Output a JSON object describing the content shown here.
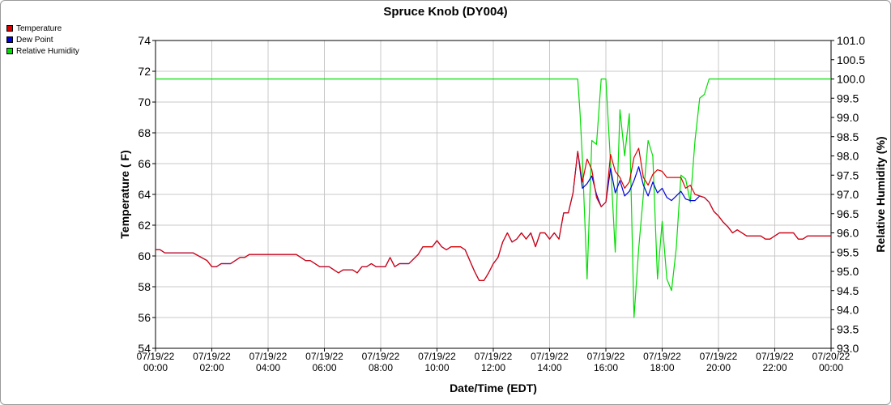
{
  "chart_data": {
    "type": "line",
    "title": "Spruce Knob (DY004)",
    "xlabel": "Date/Time (EDT)",
    "ylabel": "Temperature ( F)",
    "y2label": "Relative Humidity (%)",
    "ylim": [
      54,
      74
    ],
    "y2lim": [
      93.0,
      101.0
    ],
    "grid": true,
    "legend_position": "top-left",
    "x_ticks": [
      {
        "date": "07/19/22",
        "time": "00:00"
      },
      {
        "date": "07/19/22",
        "time": "02:00"
      },
      {
        "date": "07/19/22",
        "time": "04:00"
      },
      {
        "date": "07/19/22",
        "time": "06:00"
      },
      {
        "date": "07/19/22",
        "time": "08:00"
      },
      {
        "date": "07/19/22",
        "time": "10:00"
      },
      {
        "date": "07/19/22",
        "time": "12:00"
      },
      {
        "date": "07/19/22",
        "time": "14:00"
      },
      {
        "date": "07/19/22",
        "time": "16:00"
      },
      {
        "date": "07/19/22",
        "time": "18:00"
      },
      {
        "date": "07/19/22",
        "time": "20:00"
      },
      {
        "date": "07/19/22",
        "time": "22:00"
      },
      {
        "date": "07/20/22",
        "time": "00:00"
      }
    ],
    "y_ticks": [
      "54",
      "56",
      "58",
      "60",
      "62",
      "64",
      "66",
      "68",
      "70",
      "72",
      "74"
    ],
    "y2_ticks": [
      "93.0",
      "93.5",
      "94.0",
      "94.5",
      "95.0",
      "95.5",
      "96.0",
      "96.5",
      "97.0",
      "97.5",
      "98.0",
      "98.5",
      "99.0",
      "99.5",
      "100.0",
      "100.5",
      "101.0"
    ],
    "series": [
      {
        "name": "Temperature",
        "color": "#dd0000",
        "axis": "left",
        "points": [
          [
            "07/19/22 00:00",
            60.4
          ],
          [
            "07/19/22 00:10",
            60.4
          ],
          [
            "07/19/22 00:20",
            60.2
          ],
          [
            "07/19/22 01:20",
            60.2
          ],
          [
            "07/19/22 01:50",
            59.7
          ],
          [
            "07/19/22 02:00",
            59.3
          ],
          [
            "07/19/22 02:10",
            59.3
          ],
          [
            "07/19/22 02:20",
            59.5
          ],
          [
            "07/19/22 02:40",
            59.5
          ],
          [
            "07/19/22 03:00",
            59.9
          ],
          [
            "07/19/22 03:10",
            59.9
          ],
          [
            "07/19/22 03:20",
            60.1
          ],
          [
            "07/19/22 05:00",
            60.1
          ],
          [
            "07/19/22 05:20",
            59.7
          ],
          [
            "07/19/22 05:30",
            59.7
          ],
          [
            "07/19/22 05:50",
            59.3
          ],
          [
            "07/19/22 06:10",
            59.3
          ],
          [
            "07/19/22 06:30",
            58.9
          ],
          [
            "07/19/22 06:40",
            59.1
          ],
          [
            "07/19/22 07:00",
            59.1
          ],
          [
            "07/19/22 07:10",
            58.9
          ],
          [
            "07/19/22 07:20",
            59.3
          ],
          [
            "07/19/22 07:30",
            59.3
          ],
          [
            "07/19/22 07:40",
            59.5
          ],
          [
            "07/19/22 07:50",
            59.3
          ],
          [
            "07/19/22 08:10",
            59.3
          ],
          [
            "07/19/22 08:20",
            59.9
          ],
          [
            "07/19/22 08:30",
            59.3
          ],
          [
            "07/19/22 08:40",
            59.5
          ],
          [
            "07/19/22 09:00",
            59.5
          ],
          [
            "07/19/22 09:20",
            60.1
          ],
          [
            "07/19/22 09:30",
            60.6
          ],
          [
            "07/19/22 09:50",
            60.6
          ],
          [
            "07/19/22 10:00",
            61.0
          ],
          [
            "07/19/22 10:10",
            60.6
          ],
          [
            "07/19/22 10:20",
            60.4
          ],
          [
            "07/19/22 10:30",
            60.6
          ],
          [
            "07/19/22 10:50",
            60.6
          ],
          [
            "07/19/22 11:00",
            60.4
          ],
          [
            "07/19/22 11:10",
            59.7
          ],
          [
            "07/19/22 11:20",
            59.0
          ],
          [
            "07/19/22 11:30",
            58.4
          ],
          [
            "07/19/22 11:40",
            58.4
          ],
          [
            "07/19/22 11:50",
            58.9
          ],
          [
            "07/19/22 12:00",
            59.5
          ],
          [
            "07/19/22 12:10",
            59.9
          ],
          [
            "07/19/22 12:20",
            60.9
          ],
          [
            "07/19/22 12:30",
            61.5
          ],
          [
            "07/19/22 12:40",
            60.9
          ],
          [
            "07/19/22 12:50",
            61.1
          ],
          [
            "07/19/22 13:00",
            61.5
          ],
          [
            "07/19/22 13:10",
            61.1
          ],
          [
            "07/19/22 13:20",
            61.5
          ],
          [
            "07/19/22 13:30",
            60.6
          ],
          [
            "07/19/22 13:40",
            61.5
          ],
          [
            "07/19/22 13:50",
            61.5
          ],
          [
            "07/19/22 14:00",
            61.1
          ],
          [
            "07/19/22 14:10",
            61.5
          ],
          [
            "07/19/22 14:20",
            61.1
          ],
          [
            "07/19/22 14:30",
            62.8
          ],
          [
            "07/19/22 14:40",
            62.8
          ],
          [
            "07/19/22 14:50",
            64.1
          ],
          [
            "07/19/22 15:00",
            66.8
          ],
          [
            "07/19/22 15:10",
            64.8
          ],
          [
            "07/19/22 15:20",
            66.3
          ],
          [
            "07/19/22 15:30",
            65.6
          ],
          [
            "07/19/22 15:40",
            63.8
          ],
          [
            "07/19/22 15:50",
            63.2
          ],
          [
            "07/19/22 16:00",
            63.5
          ],
          [
            "07/19/22 16:10",
            66.6
          ],
          [
            "07/19/22 16:20",
            65.5
          ],
          [
            "07/19/22 16:30",
            65.1
          ],
          [
            "07/19/22 16:40",
            64.4
          ],
          [
            "07/19/22 16:50",
            64.8
          ],
          [
            "07/19/22 17:00",
            66.4
          ],
          [
            "07/19/22 17:10",
            67.0
          ],
          [
            "07/19/22 17:20",
            65.1
          ],
          [
            "07/19/22 17:30",
            64.6
          ],
          [
            "07/19/22 17:40",
            65.3
          ],
          [
            "07/19/22 17:50",
            65.6
          ],
          [
            "07/19/22 18:00",
            65.5
          ],
          [
            "07/19/22 18:10",
            65.1
          ],
          [
            "07/19/22 18:40",
            65.1
          ],
          [
            "07/19/22 18:50",
            64.4
          ],
          [
            "07/19/22 19:00",
            64.6
          ],
          [
            "07/19/22 19:10",
            64.0
          ],
          [
            "07/19/22 19:30",
            63.8
          ],
          [
            "07/19/22 19:40",
            63.5
          ],
          [
            "07/19/22 19:50",
            62.9
          ],
          [
            "07/19/22 20:00",
            62.6
          ],
          [
            "07/19/22 20:10",
            62.2
          ],
          [
            "07/19/22 20:20",
            61.9
          ],
          [
            "07/19/22 20:30",
            61.5
          ],
          [
            "07/19/22 20:40",
            61.7
          ],
          [
            "07/19/22 20:50",
            61.5
          ],
          [
            "07/19/22 21:00",
            61.3
          ],
          [
            "07/19/22 21:30",
            61.3
          ],
          [
            "07/19/22 21:40",
            61.1
          ],
          [
            "07/19/22 21:50",
            61.1
          ],
          [
            "07/19/22 22:00",
            61.3
          ],
          [
            "07/19/22 22:10",
            61.5
          ],
          [
            "07/19/22 22:40",
            61.5
          ],
          [
            "07/19/22 22:50",
            61.1
          ],
          [
            "07/19/22 23:00",
            61.1
          ],
          [
            "07/19/22 23:10",
            61.3
          ],
          [
            "07/20/22 00:00",
            61.3
          ]
        ]
      },
      {
        "name": "Dew Point",
        "color": "#0000dd",
        "axis": "left",
        "points": [
          [
            "07/19/22 00:00",
            60.4
          ],
          [
            "07/19/22 00:10",
            60.4
          ],
          [
            "07/19/22 00:20",
            60.2
          ],
          [
            "07/19/22 01:20",
            60.2
          ],
          [
            "07/19/22 01:50",
            59.7
          ],
          [
            "07/19/22 02:00",
            59.3
          ],
          [
            "07/19/22 02:10",
            59.3
          ],
          [
            "07/19/22 02:20",
            59.5
          ],
          [
            "07/19/22 02:40",
            59.5
          ],
          [
            "07/19/22 03:00",
            59.9
          ],
          [
            "07/19/22 03:10",
            59.9
          ],
          [
            "07/19/22 03:20",
            60.1
          ],
          [
            "07/19/22 05:00",
            60.1
          ],
          [
            "07/19/22 05:20",
            59.7
          ],
          [
            "07/19/22 05:30",
            59.7
          ],
          [
            "07/19/22 05:50",
            59.3
          ],
          [
            "07/19/22 06:10",
            59.3
          ],
          [
            "07/19/22 06:30",
            58.9
          ],
          [
            "07/19/22 06:40",
            59.1
          ],
          [
            "07/19/22 07:00",
            59.1
          ],
          [
            "07/19/22 07:10",
            58.9
          ],
          [
            "07/19/22 07:20",
            59.3
          ],
          [
            "07/19/22 07:30",
            59.3
          ],
          [
            "07/19/22 07:40",
            59.5
          ],
          [
            "07/19/22 07:50",
            59.3
          ],
          [
            "07/19/22 08:10",
            59.3
          ],
          [
            "07/19/22 08:20",
            59.9
          ],
          [
            "07/19/22 08:30",
            59.3
          ],
          [
            "07/19/22 08:40",
            59.5
          ],
          [
            "07/19/22 09:00",
            59.5
          ],
          [
            "07/19/22 09:20",
            60.1
          ],
          [
            "07/19/22 09:30",
            60.6
          ],
          [
            "07/19/22 09:50",
            60.6
          ],
          [
            "07/19/22 10:00",
            61.0
          ],
          [
            "07/19/22 10:10",
            60.6
          ],
          [
            "07/19/22 10:20",
            60.4
          ],
          [
            "07/19/22 10:30",
            60.6
          ],
          [
            "07/19/22 10:50",
            60.6
          ],
          [
            "07/19/22 11:00",
            60.4
          ],
          [
            "07/19/22 11:10",
            59.7
          ],
          [
            "07/19/22 11:20",
            59.0
          ],
          [
            "07/19/22 11:30",
            58.4
          ],
          [
            "07/19/22 11:40",
            58.4
          ],
          [
            "07/19/22 11:50",
            58.9
          ],
          [
            "07/19/22 12:00",
            59.5
          ],
          [
            "07/19/22 12:10",
            59.9
          ],
          [
            "07/19/22 12:20",
            60.9
          ],
          [
            "07/19/22 12:30",
            61.5
          ],
          [
            "07/19/22 12:40",
            60.9
          ],
          [
            "07/19/22 12:50",
            61.1
          ],
          [
            "07/19/22 13:00",
            61.5
          ],
          [
            "07/19/22 13:10",
            61.1
          ],
          [
            "07/19/22 13:20",
            61.5
          ],
          [
            "07/19/22 13:30",
            60.6
          ],
          [
            "07/19/22 13:40",
            61.5
          ],
          [
            "07/19/22 13:50",
            61.5
          ],
          [
            "07/19/22 14:00",
            61.1
          ],
          [
            "07/19/22 14:10",
            61.5
          ],
          [
            "07/19/22 14:20",
            61.1
          ],
          [
            "07/19/22 14:30",
            62.8
          ],
          [
            "07/19/22 14:40",
            62.8
          ],
          [
            "07/19/22 14:50",
            64.1
          ],
          [
            "07/19/22 15:00",
            66.8
          ],
          [
            "07/19/22 15:10",
            64.4
          ],
          [
            "07/19/22 15:20",
            64.7
          ],
          [
            "07/19/22 15:30",
            65.2
          ],
          [
            "07/19/22 15:40",
            64.0
          ],
          [
            "07/19/22 15:50",
            63.2
          ],
          [
            "07/19/22 16:00",
            63.5
          ],
          [
            "07/19/22 16:10",
            65.7
          ],
          [
            "07/19/22 16:20",
            64.1
          ],
          [
            "07/19/22 16:30",
            64.9
          ],
          [
            "07/19/22 16:40",
            63.9
          ],
          [
            "07/19/22 16:50",
            64.2
          ],
          [
            "07/19/22 17:00",
            64.9
          ],
          [
            "07/19/22 17:10",
            65.8
          ],
          [
            "07/19/22 17:20",
            64.6
          ],
          [
            "07/19/22 17:30",
            63.9
          ],
          [
            "07/19/22 17:40",
            64.8
          ],
          [
            "07/19/22 17:50",
            64.1
          ],
          [
            "07/19/22 18:00",
            64.4
          ],
          [
            "07/19/22 18:10",
            63.8
          ],
          [
            "07/19/22 18:20",
            63.6
          ],
          [
            "07/19/22 18:30",
            63.9
          ],
          [
            "07/19/22 18:40",
            64.2
          ],
          [
            "07/19/22 18:50",
            63.7
          ],
          [
            "07/19/22 19:00",
            63.6
          ],
          [
            "07/19/22 19:10",
            63.6
          ],
          [
            "07/19/22 19:20",
            63.9
          ],
          [
            "07/19/22 19:30",
            63.8
          ],
          [
            "07/19/22 19:40",
            63.5
          ],
          [
            "07/19/22 19:50",
            62.9
          ],
          [
            "07/19/22 20:00",
            62.6
          ],
          [
            "07/19/22 20:10",
            62.2
          ],
          [
            "07/19/22 20:20",
            61.9
          ],
          [
            "07/19/22 20:30",
            61.5
          ],
          [
            "07/19/22 20:40",
            61.7
          ],
          [
            "07/19/22 20:50",
            61.5
          ],
          [
            "07/19/22 21:00",
            61.3
          ],
          [
            "07/19/22 21:30",
            61.3
          ],
          [
            "07/19/22 21:40",
            61.1
          ],
          [
            "07/19/22 21:50",
            61.1
          ],
          [
            "07/19/22 22:00",
            61.3
          ],
          [
            "07/19/22 22:10",
            61.5
          ],
          [
            "07/19/22 22:40",
            61.5
          ],
          [
            "07/19/22 22:50",
            61.1
          ],
          [
            "07/19/22 23:00",
            61.1
          ],
          [
            "07/19/22 23:10",
            61.3
          ],
          [
            "07/20/22 00:00",
            61.3
          ]
        ]
      },
      {
        "name": "Relative Humidity",
        "color": "#00dd00",
        "axis": "right",
        "points": [
          [
            "07/19/22 00:00",
            100.0
          ],
          [
            "07/19/22 15:00",
            100.0
          ],
          [
            "07/19/22 15:05",
            99.1
          ],
          [
            "07/19/22 15:10",
            97.9
          ],
          [
            "07/19/22 15:20",
            94.8
          ],
          [
            "07/19/22 15:30",
            98.4
          ],
          [
            "07/19/22 15:40",
            98.3
          ],
          [
            "07/19/22 15:50",
            100.0
          ],
          [
            "07/19/22 16:00",
            100.0
          ],
          [
            "07/19/22 16:10",
            97.8
          ],
          [
            "07/19/22 16:20",
            95.5
          ],
          [
            "07/19/22 16:30",
            99.2
          ],
          [
            "07/19/22 16:40",
            98.0
          ],
          [
            "07/19/22 16:50",
            99.1
          ],
          [
            "07/19/22 17:00",
            93.8
          ],
          [
            "07/19/22 17:10",
            95.6
          ],
          [
            "07/19/22 17:20",
            97.0
          ],
          [
            "07/19/22 17:30",
            98.4
          ],
          [
            "07/19/22 17:40",
            98.0
          ],
          [
            "07/19/22 17:50",
            94.8
          ],
          [
            "07/19/22 18:00",
            96.3
          ],
          [
            "07/19/22 18:10",
            94.8
          ],
          [
            "07/19/22 18:20",
            94.5
          ],
          [
            "07/19/22 18:30",
            95.6
          ],
          [
            "07/19/22 18:40",
            97.5
          ],
          [
            "07/19/22 18:50",
            97.4
          ],
          [
            "07/19/22 19:00",
            96.8
          ],
          [
            "07/19/22 19:10",
            98.4
          ],
          [
            "07/19/22 19:20",
            99.5
          ],
          [
            "07/19/22 19:30",
            99.6
          ],
          [
            "07/19/22 19:40",
            100.0
          ],
          [
            "07/20/22 00:00",
            100.0
          ]
        ]
      }
    ]
  }
}
